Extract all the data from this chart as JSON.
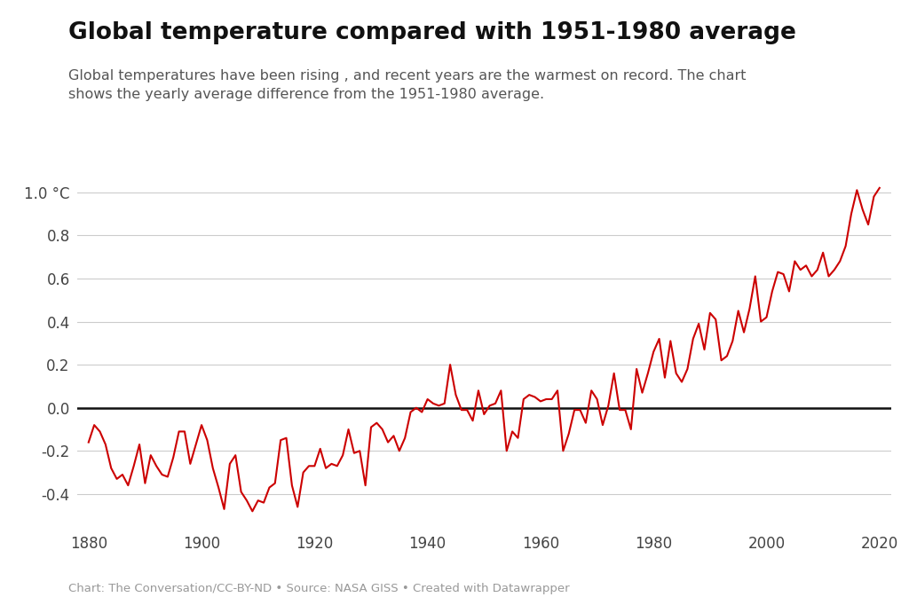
{
  "title": "Global temperature compared with 1951-1980 average",
  "subtitle": "Global temperatures have been rising , and recent years are the warmest on record. The chart\nshows the yearly average difference from the 1951-1980 average.",
  "footnote": "Chart: The Conversation/CC-BY-ND • Source: NASA GISS • Created with Datawrapper",
  "line_color": "#cc0000",
  "zero_line_color": "#111111",
  "grid_color": "#cccccc",
  "background_color": "#ffffff",
  "text_color": "#444444",
  "subtitle_color": "#555555",
  "footnote_color": "#999999",
  "xlim": [
    1878,
    2022
  ],
  "ylim": [
    -0.55,
    1.12
  ],
  "yticks": [
    -0.4,
    -0.2,
    0.0,
    0.2,
    0.4,
    0.6,
    0.8,
    1.0
  ],
  "xticks": [
    1880,
    1900,
    1920,
    1940,
    1960,
    1980,
    2000,
    2020
  ],
  "years": [
    1880,
    1881,
    1882,
    1883,
    1884,
    1885,
    1886,
    1887,
    1888,
    1889,
    1890,
    1891,
    1892,
    1893,
    1894,
    1895,
    1896,
    1897,
    1898,
    1899,
    1900,
    1901,
    1902,
    1903,
    1904,
    1905,
    1906,
    1907,
    1908,
    1909,
    1910,
    1911,
    1912,
    1913,
    1914,
    1915,
    1916,
    1917,
    1918,
    1919,
    1920,
    1921,
    1922,
    1923,
    1924,
    1925,
    1926,
    1927,
    1928,
    1929,
    1930,
    1931,
    1932,
    1933,
    1934,
    1935,
    1936,
    1937,
    1938,
    1939,
    1940,
    1941,
    1942,
    1943,
    1944,
    1945,
    1946,
    1947,
    1948,
    1949,
    1950,
    1951,
    1952,
    1953,
    1954,
    1955,
    1956,
    1957,
    1958,
    1959,
    1960,
    1961,
    1962,
    1963,
    1964,
    1965,
    1966,
    1967,
    1968,
    1969,
    1970,
    1971,
    1972,
    1973,
    1974,
    1975,
    1976,
    1977,
    1978,
    1979,
    1980,
    1981,
    1982,
    1983,
    1984,
    1985,
    1986,
    1987,
    1988,
    1989,
    1990,
    1991,
    1992,
    1993,
    1994,
    1995,
    1996,
    1997,
    1998,
    1999,
    2000,
    2001,
    2002,
    2003,
    2004,
    2005,
    2006,
    2007,
    2008,
    2009,
    2010,
    2011,
    2012,
    2013,
    2014,
    2015,
    2016,
    2017,
    2018,
    2019,
    2020
  ],
  "temps": [
    -0.16,
    -0.08,
    -0.11,
    -0.17,
    -0.28,
    -0.33,
    -0.31,
    -0.36,
    -0.27,
    -0.17,
    -0.35,
    -0.22,
    -0.27,
    -0.31,
    -0.32,
    -0.23,
    -0.11,
    -0.11,
    -0.26,
    -0.17,
    -0.08,
    -0.15,
    -0.28,
    -0.37,
    -0.47,
    -0.26,
    -0.22,
    -0.39,
    -0.43,
    -0.48,
    -0.43,
    -0.44,
    -0.37,
    -0.35,
    -0.15,
    -0.14,
    -0.36,
    -0.46,
    -0.3,
    -0.27,
    -0.27,
    -0.19,
    -0.28,
    -0.26,
    -0.27,
    -0.22,
    -0.1,
    -0.21,
    -0.2,
    -0.36,
    -0.09,
    -0.07,
    -0.1,
    -0.16,
    -0.13,
    -0.2,
    -0.14,
    -0.02,
    -0.0,
    -0.02,
    0.04,
    0.02,
    0.01,
    0.02,
    0.2,
    0.06,
    -0.01,
    -0.01,
    -0.06,
    0.08,
    -0.03,
    0.01,
    0.02,
    0.08,
    -0.2,
    -0.11,
    -0.14,
    0.04,
    0.06,
    0.05,
    0.03,
    0.04,
    0.04,
    0.08,
    -0.2,
    -0.12,
    -0.01,
    -0.01,
    -0.07,
    0.08,
    0.04,
    -0.08,
    0.01,
    0.16,
    -0.01,
    -0.01,
    -0.1,
    0.18,
    0.07,
    0.16,
    0.26,
    0.32,
    0.14,
    0.31,
    0.16,
    0.12,
    0.18,
    0.32,
    0.39,
    0.27,
    0.44,
    0.41,
    0.22,
    0.24,
    0.31,
    0.45,
    0.35,
    0.46,
    0.61,
    0.4,
    0.42,
    0.54,
    0.63,
    0.62,
    0.54,
    0.68,
    0.64,
    0.66,
    0.61,
    0.64,
    0.72,
    0.61,
    0.64,
    0.68,
    0.75,
    0.9,
    1.01,
    0.92,
    0.85,
    0.98,
    1.02
  ]
}
